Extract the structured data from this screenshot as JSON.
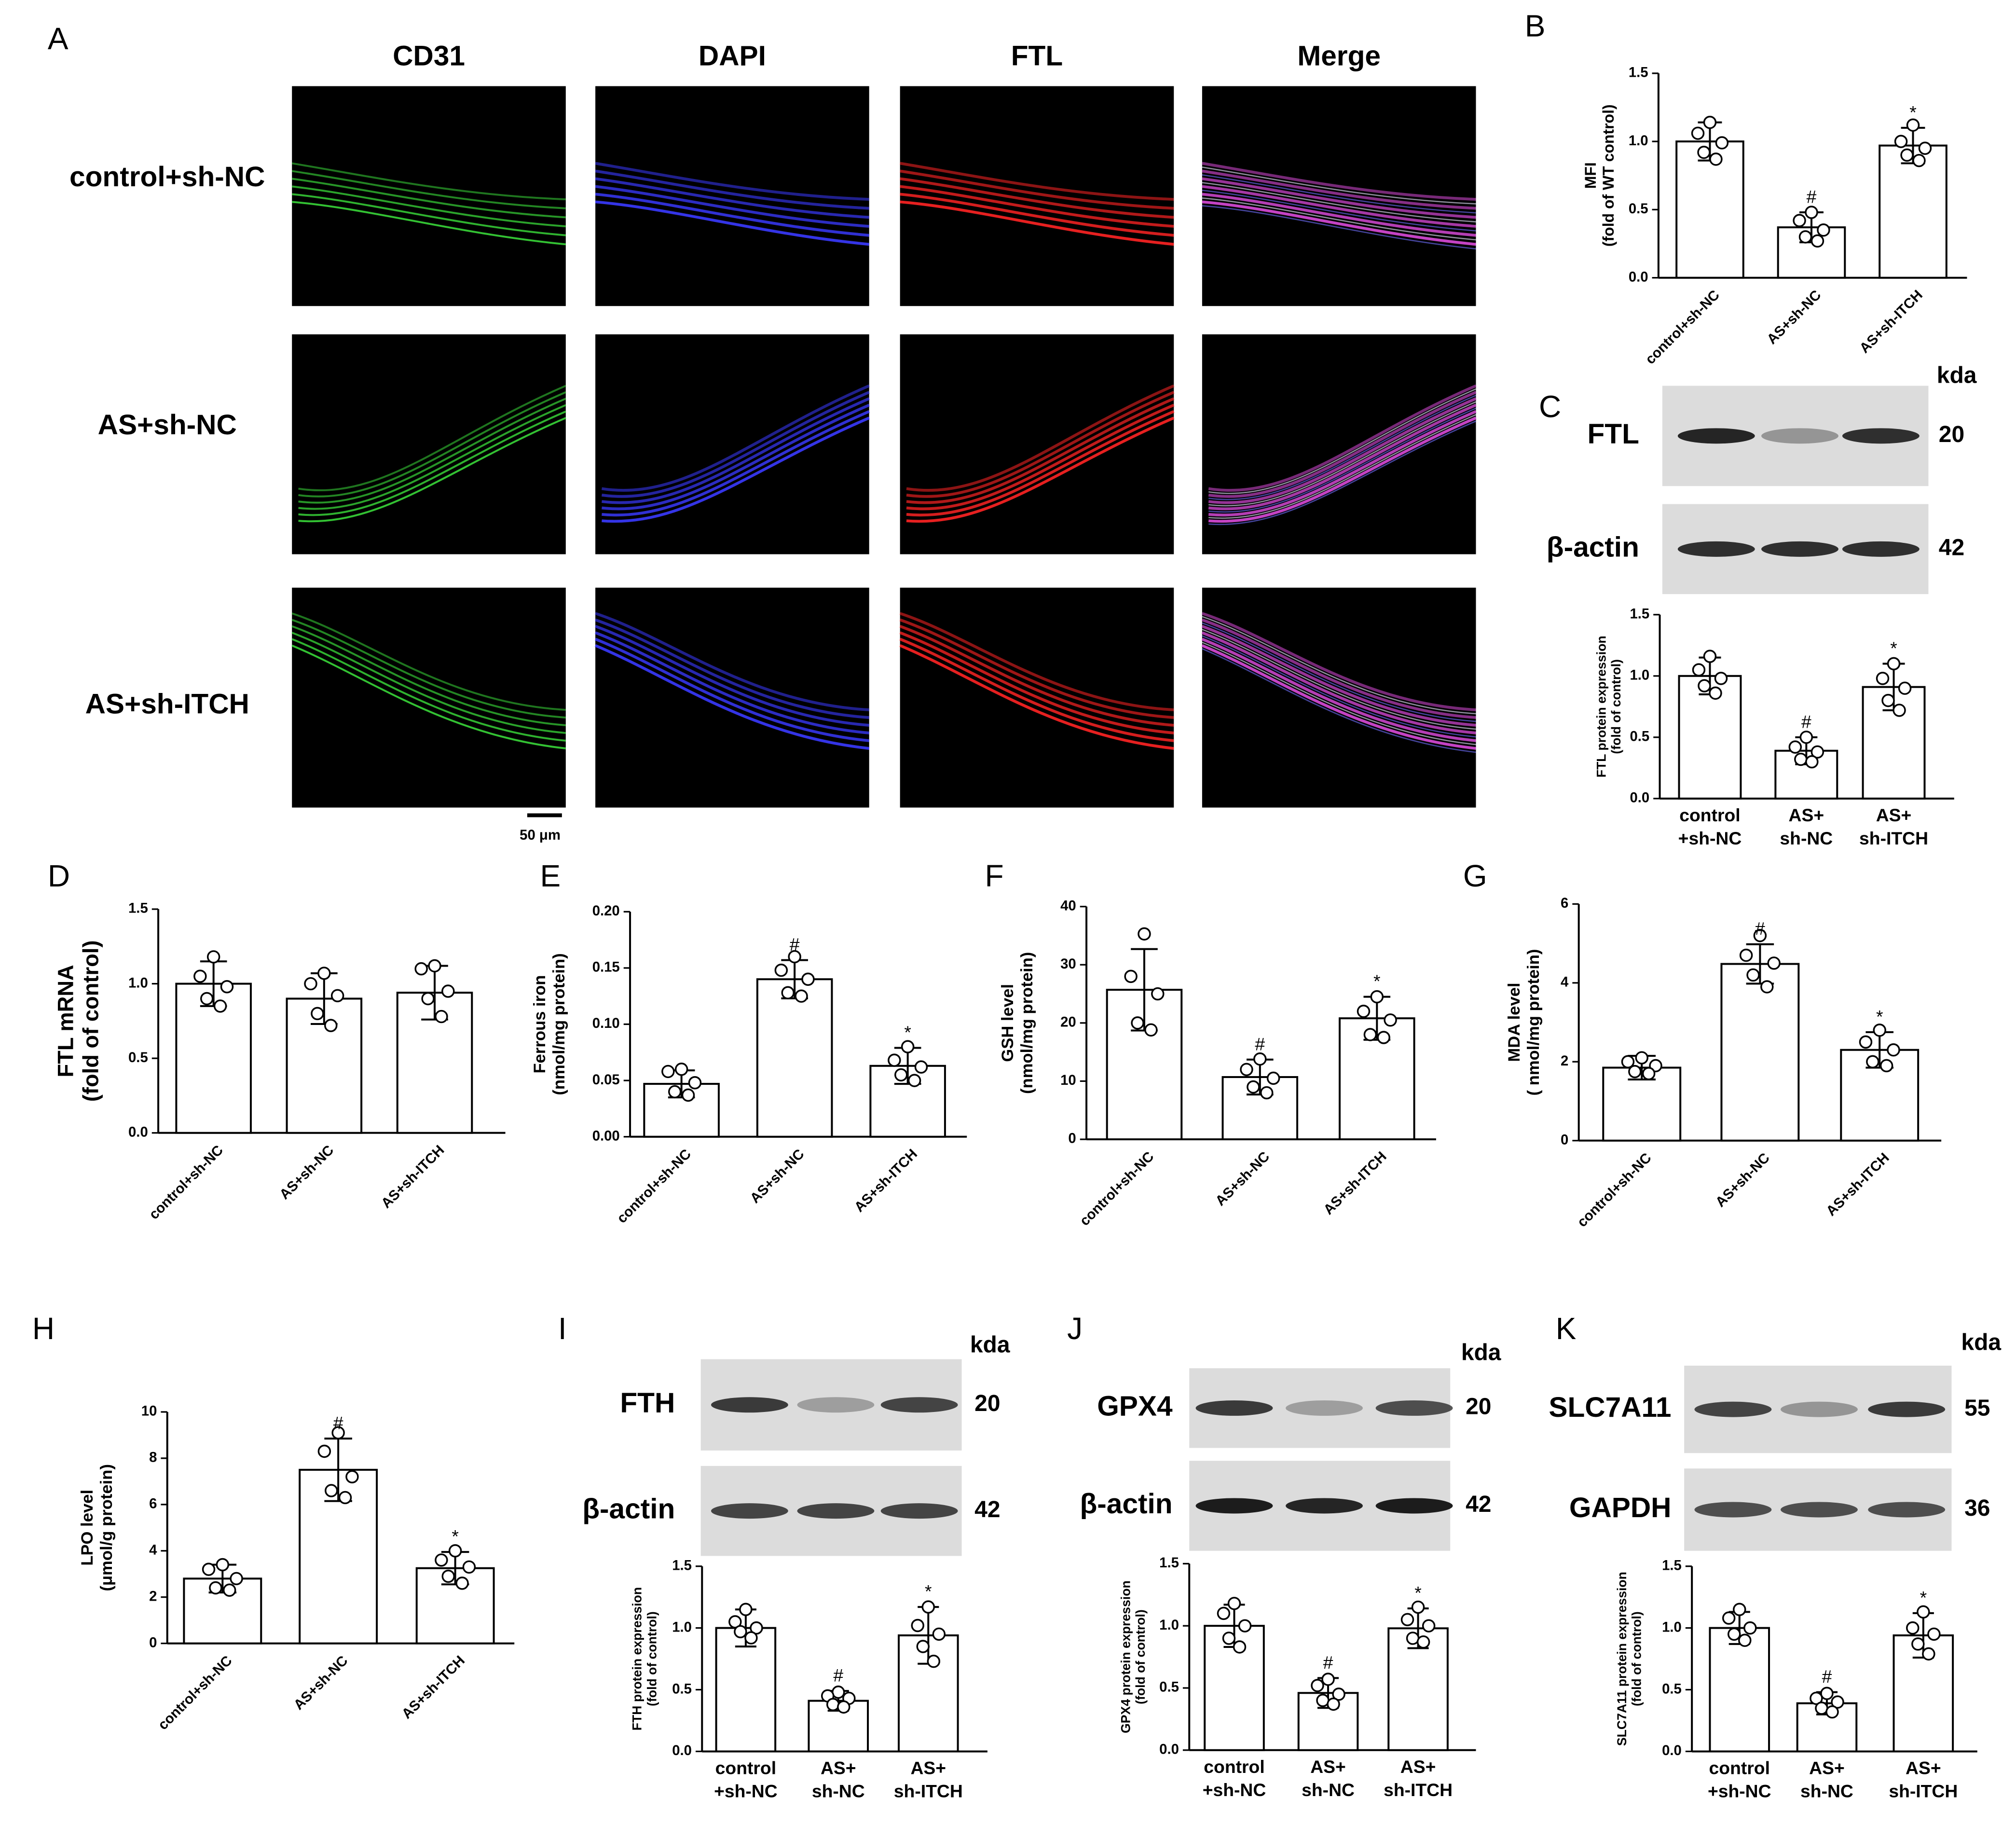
{
  "images": {
    "panel": "A",
    "columns": [
      "CD31",
      "DAPI",
      "FTL",
      "Merge"
    ],
    "rows": [
      "control+sh-NC",
      "AS+sh-NC",
      "AS+sh-ITCH"
    ],
    "scale_bar": "50 μm"
  },
  "blots": [
    {
      "panel": "C",
      "header": "kda",
      "rows": [
        {
          "label": "FTL",
          "kda": 20
        },
        {
          "label": "β-actin",
          "kda": 42
        }
      ]
    },
    {
      "panel": "I",
      "header": "kda",
      "rows": [
        {
          "label": "FTH",
          "kda": 20
        },
        {
          "label": "β-actin",
          "kda": 42
        }
      ]
    },
    {
      "panel": "J",
      "header": "kda",
      "rows": [
        {
          "label": "GPX4",
          "kda": 20
        },
        {
          "label": "β-actin",
          "kda": 42
        }
      ]
    },
    {
      "panel": "K",
      "header": "kda",
      "rows": [
        {
          "label": "SLC7A11",
          "kda": 55
        },
        {
          "label": "GAPDH",
          "kda": 36
        }
      ]
    }
  ],
  "chart_data": [
    {
      "type": "bar",
      "panel": "B",
      "ylabel": [
        "MFI",
        "(fold of WT control)"
      ],
      "categories": [
        "control+sh-NC",
        "AS+sh-NC",
        "AS+sh-ITCH"
      ],
      "color": "#ffffff",
      "values": [
        1.0,
        0.37,
        0.97
      ],
      "errors": [
        0.14,
        0.11,
        0.13
      ],
      "markers": [
        null,
        "#",
        "*"
      ],
      "points": [
        [
          1.14,
          1.06,
          0.99,
          0.92,
          0.87
        ],
        [
          0.48,
          0.42,
          0.35,
          0.3,
          0.27
        ],
        [
          1.12,
          1.0,
          0.95,
          0.9,
          0.86
        ]
      ],
      "ylim": [
        0,
        1.5
      ],
      "yticks": [
        {
          "value": 0,
          "label": "0.0"
        },
        0.5,
        {
          "value": 1,
          "label": "1.0"
        },
        1.5
      ]
    },
    {
      "type": "bar",
      "panel": "C",
      "ylabel": [
        "FTL protein expression",
        "(fold of control)"
      ],
      "categories": [
        [
          "control",
          "+sh-NC"
        ],
        [
          "AS+",
          "sh-NC"
        ],
        [
          "AS+",
          "sh-ITCH"
        ]
      ],
      "color": "#ffffff",
      "values": [
        1.0,
        0.39,
        0.91
      ],
      "errors": [
        0.15,
        0.11,
        0.19
      ],
      "markers": [
        null,
        "#",
        "*"
      ],
      "points": [
        [
          1.16,
          1.05,
          0.98,
          0.92,
          0.86
        ],
        [
          0.5,
          0.42,
          0.38,
          0.32,
          0.3
        ],
        [
          1.1,
          0.98,
          0.9,
          0.8,
          0.72
        ]
      ],
      "ylim": [
        0,
        1.5
      ],
      "yticks": [
        {
          "value": 0,
          "label": "0.0"
        },
        0.5,
        {
          "value": 1,
          "label": "1.0"
        },
        1.5
      ]
    },
    {
      "type": "bar",
      "panel": "D",
      "ylabel": [
        "FTL mRNA",
        "(fold of control)"
      ],
      "categories": [
        "control+sh-NC",
        "AS+sh-NC",
        "AS+sh-ITCH"
      ],
      "color": "#ffffff",
      "values": [
        1.0,
        0.9,
        0.94
      ],
      "errors": [
        0.15,
        0.17,
        0.18
      ],
      "points": [
        [
          1.18,
          1.05,
          0.98,
          0.9,
          0.85
        ],
        [
          1.07,
          1.0,
          0.92,
          0.8,
          0.72
        ],
        [
          1.12,
          1.1,
          0.95,
          0.9,
          0.78
        ]
      ],
      "ylim": [
        0,
        1.5
      ],
      "yticks": [
        {
          "value": 0,
          "label": "0.0"
        },
        0.5,
        {
          "value": 1,
          "label": "1.0"
        },
        1.5
      ]
    },
    {
      "type": "bar",
      "panel": "E",
      "ylabel": [
        "Ferrous iron",
        "(nmol/mg protein)"
      ],
      "categories": [
        "control+sh-NC",
        "AS+sh-NC",
        "AS+sh-ITCH"
      ],
      "color": "#ffffff",
      "values": [
        0.047,
        0.14,
        0.063
      ],
      "errors": [
        0.012,
        0.017,
        0.016
      ],
      "markers": [
        null,
        "#",
        "*"
      ],
      "points": [
        [
          0.06,
          0.058,
          0.048,
          0.04,
          0.037
        ],
        [
          0.16,
          0.148,
          0.14,
          0.128,
          0.125
        ],
        [
          0.08,
          0.068,
          0.062,
          0.055,
          0.05
        ]
      ],
      "ylim": [
        0,
        0.2
      ],
      "yticks": [
        {
          "value": 0,
          "label": "0.00"
        },
        0.05,
        {
          "value": 0.1,
          "label": "0.10"
        },
        0.15,
        {
          "value": 0.2,
          "label": "0.20"
        }
      ]
    },
    {
      "type": "bar",
      "panel": "F",
      "ylabel": [
        "GSH level",
        "(nmol/mg protein)"
      ],
      "categories": [
        "control+sh-NC",
        "AS+sh-NC",
        "AS+sh-ITCH"
      ],
      "color": "#ffffff",
      "values": [
        25.7,
        10.7,
        20.8
      ],
      "errors": [
        7,
        3,
        3.7
      ],
      "markers": [
        null,
        "#",
        "*"
      ],
      "points": [
        [
          35.3,
          28,
          25,
          20,
          18.8
        ],
        [
          13.8,
          12,
          10.5,
          9,
          8
        ],
        [
          24.5,
          22,
          20.5,
          18,
          17.5
        ]
      ],
      "ylim": [
        0,
        40
      ],
      "yticks": [
        0,
        10,
        20,
        30,
        40
      ]
    },
    {
      "type": "bar",
      "panel": "G",
      "ylabel": [
        "MDA level",
        "( nmol/mg protein)"
      ],
      "categories": [
        "control+sh-NC",
        "AS+sh-NC",
        "AS+sh-ITCH"
      ],
      "color": "#ffffff",
      "values": [
        1.85,
        4.48,
        2.3
      ],
      "errors": [
        0.3,
        0.5,
        0.45
      ],
      "markers": [
        null,
        "#",
        "*"
      ],
      "points": [
        [
          2.1,
          2.0,
          1.9,
          1.75,
          1.7
        ],
        [
          5.2,
          4.7,
          4.5,
          4.2,
          3.9
        ],
        [
          2.8,
          2.5,
          2.3,
          2.0,
          1.9
        ]
      ],
      "ylim": [
        0,
        6
      ],
      "yticks": [
        0,
        2,
        4,
        6
      ]
    },
    {
      "type": "bar",
      "panel": "H",
      "ylabel": [
        "LPO level",
        "(μmol/g protein)"
      ],
      "categories": [
        "control+sh-NC",
        "AS+sh-NC",
        "AS+sh-ITCH"
      ],
      "color": "#ffffff",
      "values": [
        2.8,
        7.5,
        3.25
      ],
      "errors": [
        0.6,
        1.35,
        0.7
      ],
      "markers": [
        null,
        "#",
        "*"
      ],
      "points": [
        [
          3.4,
          3.2,
          2.8,
          2.4,
          2.3
        ],
        [
          9.1,
          8.3,
          7.2,
          6.6,
          6.3
        ],
        [
          4.0,
          3.6,
          3.3,
          2.9,
          2.6
        ]
      ],
      "ylim": [
        0,
        10
      ],
      "yticks": [
        0,
        2,
        4,
        6,
        8,
        10
      ]
    },
    {
      "type": "bar",
      "panel": "I",
      "ylabel": [
        "FTH protein expression",
        "(fold of control)"
      ],
      "categories": [
        [
          "control",
          "+sh-NC"
        ],
        [
          "AS+",
          "sh-NC"
        ],
        [
          "AS+",
          "sh-ITCH"
        ]
      ],
      "color": "#ffffff",
      "values": [
        1.0,
        0.41,
        0.94
      ],
      "errors": [
        0.15,
        0.08,
        0.23
      ],
      "markers": [
        null,
        "#",
        "*"
      ],
      "points": [
        [
          1.15,
          1.05,
          1.0,
          0.97,
          0.92
        ],
        [
          0.48,
          0.45,
          0.43,
          0.38,
          0.36
        ],
        [
          1.17,
          1.02,
          0.95,
          0.85,
          0.73
        ]
      ],
      "ylim": [
        0,
        1.5
      ],
      "yticks": [
        {
          "value": 0,
          "label": "0.0"
        },
        0.5,
        {
          "value": 1,
          "label": "1.0"
        },
        1.5
      ]
    },
    {
      "type": "bar",
      "panel": "J",
      "ylabel": [
        "GPX4 protein expression",
        "(fold of control)"
      ],
      "categories": [
        [
          "control",
          "+sh-NC"
        ],
        [
          "AS+",
          "sh-NC"
        ],
        [
          "AS+",
          "sh-ITCH"
        ]
      ],
      "color": "#ffffff",
      "values": [
        1.0,
        0.46,
        0.98
      ],
      "errors": [
        0.17,
        0.12,
        0.16
      ],
      "markers": [
        null,
        "#",
        "*"
      ],
      "points": [
        [
          1.18,
          1.1,
          1.0,
          0.9,
          0.83
        ],
        [
          0.57,
          0.52,
          0.45,
          0.4,
          0.37
        ],
        [
          1.15,
          1.05,
          1.0,
          0.9,
          0.87
        ]
      ],
      "ylim": [
        0,
        1.5
      ],
      "yticks": [
        {
          "value": 0,
          "label": "0.0"
        },
        0.5,
        {
          "value": 1,
          "label": "1.0"
        },
        1.5
      ]
    },
    {
      "type": "bar",
      "panel": "K",
      "ylabel": [
        "SLC7A11 protein expression",
        "(fold of control)"
      ],
      "categories": [
        [
          "control",
          "+sh-NC"
        ],
        [
          "AS+",
          "sh-NC"
        ],
        [
          "AS+",
          "sh-ITCH"
        ]
      ],
      "color": "#ffffff",
      "values": [
        1.0,
        0.39,
        0.94
      ],
      "errors": [
        0.13,
        0.09,
        0.18
      ],
      "markers": [
        null,
        "#",
        "*"
      ],
      "points": [
        [
          1.15,
          1.08,
          1.0,
          0.95,
          0.9
        ],
        [
          0.47,
          0.43,
          0.4,
          0.35,
          0.32
        ],
        [
          1.13,
          1.0,
          0.95,
          0.87,
          0.79
        ]
      ],
      "ylim": [
        0,
        1.5
      ],
      "yticks": [
        {
          "value": 0,
          "label": "0.0"
        },
        0.5,
        {
          "value": 1,
          "label": "1.0"
        },
        1.5
      ]
    }
  ]
}
